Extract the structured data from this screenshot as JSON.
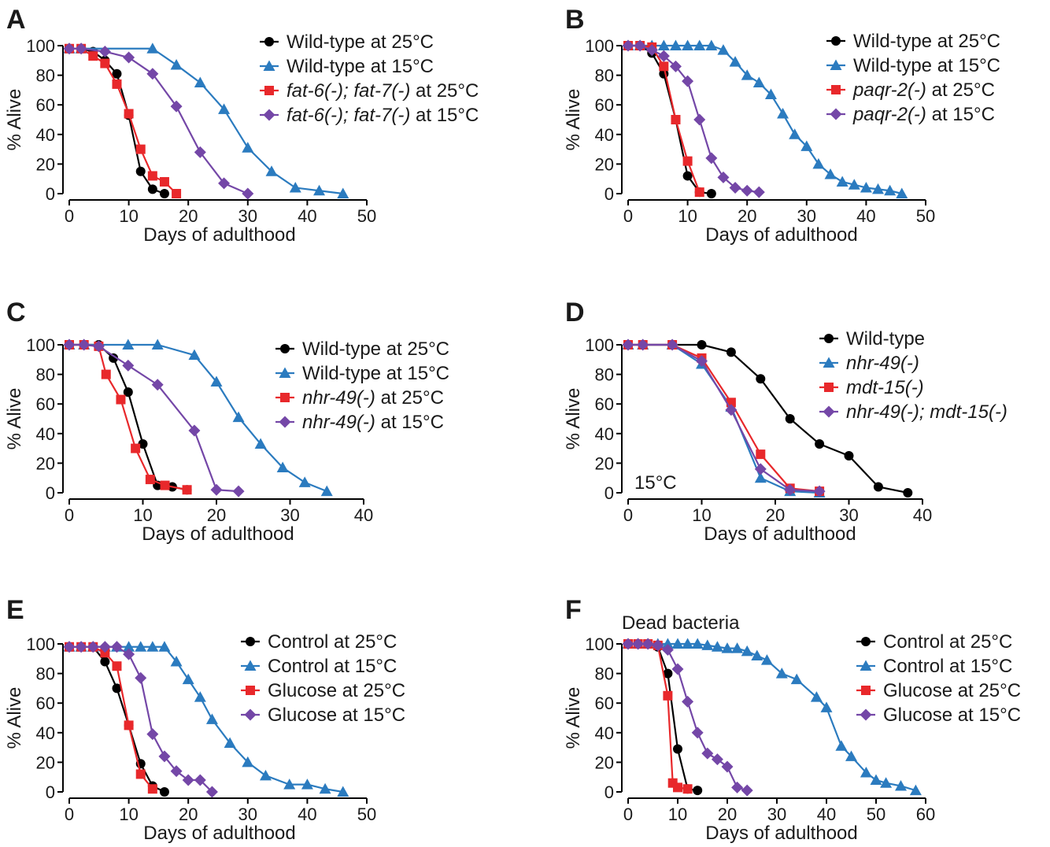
{
  "figure": {
    "panels": [
      {
        "letter": "A"
      },
      {
        "letter": "B"
      },
      {
        "letter": "C"
      },
      {
        "letter": "D"
      },
      {
        "letter": "E"
      },
      {
        "letter": "F"
      }
    ]
  },
  "chart_data": [
    {
      "type": "line",
      "panel": "A",
      "xlabel": "Days of adulthood",
      "ylabel": "% Alive",
      "xlim": [
        0,
        50
      ],
      "ylim": [
        0,
        100
      ],
      "xticks": [
        0,
        10,
        20,
        30,
        40,
        50
      ],
      "yticks": [
        0,
        20,
        40,
        60,
        80,
        100
      ],
      "legend_position": "top-right",
      "series": [
        {
          "name_parts": [
            {
              "text": "Wild-type at 25°C",
              "italic": false
            }
          ],
          "color": "#000000",
          "marker": "circle",
          "x": [
            0,
            2,
            4,
            6,
            8,
            10,
            12,
            14,
            16
          ],
          "y": [
            98,
            98,
            96,
            90,
            81,
            53,
            15,
            3,
            0
          ]
        },
        {
          "name_parts": [
            {
              "text": "Wild-type at 15°C",
              "italic": false
            }
          ],
          "color": "#2b7bbf",
          "marker": "triangle",
          "x": [
            0,
            2,
            14,
            18,
            22,
            26,
            30,
            34,
            38,
            42,
            46
          ],
          "y": [
            98,
            98,
            98,
            87,
            75,
            57,
            31,
            15,
            4,
            2,
            0
          ]
        },
        {
          "name_parts": [
            {
              "text": "fat-6(-); fat-7(-)",
              "italic": true
            },
            {
              "text": " at 25°C",
              "italic": false
            }
          ],
          "color": "#e8282b",
          "marker": "square",
          "x": [
            0,
            2,
            4,
            6,
            8,
            10,
            12,
            14,
            16,
            18
          ],
          "y": [
            98,
            98,
            93,
            88,
            74,
            54,
            30,
            12,
            8,
            0
          ]
        },
        {
          "name_parts": [
            {
              "text": "fat-6(-); fat-7(-)",
              "italic": true
            },
            {
              "text": " at 15°C",
              "italic": false
            }
          ],
          "color": "#7447a7",
          "marker": "diamond",
          "x": [
            0,
            2,
            6,
            10,
            14,
            18,
            22,
            26,
            30
          ],
          "y": [
            98,
            98,
            96,
            92,
            81,
            59,
            28,
            7,
            0
          ]
        }
      ]
    },
    {
      "type": "line",
      "panel": "B",
      "xlabel": "Days of adulthood",
      "ylabel": "% Alive",
      "xlim": [
        0,
        50
      ],
      "ylim": [
        0,
        100
      ],
      "xticks": [
        0,
        10,
        20,
        30,
        40,
        50
      ],
      "yticks": [
        0,
        20,
        40,
        60,
        80,
        100
      ],
      "legend_position": "top-right",
      "series": [
        {
          "name_parts": [
            {
              "text": "Wild-type at 25°C",
              "italic": false
            }
          ],
          "color": "#000000",
          "marker": "circle",
          "x": [
            0,
            2,
            4,
            6,
            8,
            10,
            12,
            14
          ],
          "y": [
            100,
            100,
            95,
            81,
            50,
            12,
            1,
            0
          ]
        },
        {
          "name_parts": [
            {
              "text": "Wild-type at 15°C",
              "italic": false
            }
          ],
          "color": "#2b7bbf",
          "marker": "triangle",
          "x": [
            0,
            2,
            4,
            6,
            8,
            10,
            12,
            14,
            16,
            18,
            20,
            22,
            24,
            26,
            28,
            30,
            32,
            34,
            36,
            38,
            40,
            42,
            44,
            46
          ],
          "y": [
            100,
            100,
            100,
            100,
            100,
            100,
            100,
            100,
            97,
            89,
            80,
            75,
            67,
            54,
            40,
            32,
            20,
            13,
            8,
            6,
            4,
            3,
            2,
            0
          ]
        },
        {
          "name_parts": [
            {
              "text": "paqr-2(-)",
              "italic": true
            },
            {
              "text": " at 25°C",
              "italic": false
            }
          ],
          "color": "#e8282b",
          "marker": "square",
          "x": [
            0,
            2,
            4,
            6,
            8,
            10,
            12
          ],
          "y": [
            100,
            100,
            99,
            86,
            50,
            22,
            1
          ]
        },
        {
          "name_parts": [
            {
              "text": "paqr-2(-)",
              "italic": true
            },
            {
              "text": " at 15°C",
              "italic": false
            }
          ],
          "color": "#7447a7",
          "marker": "diamond",
          "x": [
            0,
            2,
            4,
            6,
            8,
            10,
            12,
            14,
            16,
            18,
            20,
            22
          ],
          "y": [
            100,
            100,
            97,
            93,
            86,
            76,
            50,
            24,
            11,
            4,
            2,
            1
          ]
        }
      ]
    },
    {
      "type": "line",
      "panel": "C",
      "xlabel": "Days of adulthood",
      "ylabel": "% Alive",
      "xlim": [
        0,
        40
      ],
      "ylim": [
        0,
        100
      ],
      "xticks": [
        0,
        10,
        20,
        30,
        40
      ],
      "yticks": [
        0,
        20,
        40,
        60,
        80,
        100
      ],
      "legend_position": "top-right",
      "series": [
        {
          "name_parts": [
            {
              "text": "Wild-type at 25°C",
              "italic": false
            }
          ],
          "color": "#000000",
          "marker": "circle",
          "x": [
            0,
            2,
            4,
            6,
            8,
            10,
            12,
            14,
            16
          ],
          "y": [
            100,
            100,
            100,
            91,
            68,
            33,
            5,
            4,
            2
          ]
        },
        {
          "name_parts": [
            {
              "text": "Wild-type at 15°C",
              "italic": false
            }
          ],
          "color": "#2b7bbf",
          "marker": "triangle",
          "x": [
            0,
            2,
            8,
            12,
            17,
            20,
            23,
            26,
            29,
            32,
            35
          ],
          "y": [
            100,
            100,
            100,
            100,
            93,
            75,
            51,
            33,
            17,
            7,
            1
          ]
        },
        {
          "name_parts": [
            {
              "text": "nhr-49(-)",
              "italic": true
            },
            {
              "text": " at 25°C",
              "italic": false
            }
          ],
          "color": "#e8282b",
          "marker": "square",
          "x": [
            0,
            2,
            4,
            5,
            7,
            9,
            11,
            13,
            16
          ],
          "y": [
            100,
            100,
            99,
            80,
            63,
            30,
            9,
            5,
            2
          ]
        },
        {
          "name_parts": [
            {
              "text": "nhr-49(-)",
              "italic": true
            },
            {
              "text": " at 15°C",
              "italic": false
            }
          ],
          "color": "#7447a7",
          "marker": "diamond",
          "x": [
            0,
            2,
            4,
            8,
            12,
            17,
            20,
            23
          ],
          "y": [
            100,
            100,
            99,
            86,
            73,
            42,
            2,
            1
          ]
        }
      ]
    },
    {
      "type": "line",
      "panel": "D",
      "xlabel": "Days of adulthood",
      "ylabel": "% Alive",
      "xlim": [
        0,
        40
      ],
      "ylim": [
        0,
        100
      ],
      "xticks": [
        0,
        10,
        20,
        30,
        40
      ],
      "yticks": [
        0,
        20,
        40,
        60,
        80,
        100
      ],
      "legend_position": "top-right",
      "annotation": "15°C",
      "series": [
        {
          "name_parts": [
            {
              "text": "Wild-type",
              "italic": false
            }
          ],
          "color": "#000000",
          "marker": "circle",
          "x": [
            0,
            2,
            6,
            10,
            14,
            18,
            22,
            26,
            30,
            34,
            38
          ],
          "y": [
            100,
            100,
            100,
            100,
            95,
            77,
            50,
            33,
            25,
            4,
            0
          ]
        },
        {
          "name_parts": [
            {
              "text": "nhr-49(-)",
              "italic": true
            }
          ],
          "color": "#2b7bbf",
          "marker": "triangle",
          "x": [
            0,
            2,
            6,
            10,
            14,
            18,
            22,
            26
          ],
          "y": [
            100,
            100,
            100,
            87,
            58,
            10,
            1,
            0
          ]
        },
        {
          "name_parts": [
            {
              "text": "mdt-15(-)",
              "italic": true
            }
          ],
          "color": "#e8282b",
          "marker": "square",
          "x": [
            0,
            2,
            6,
            10,
            14,
            18,
            22,
            26
          ],
          "y": [
            100,
            100,
            100,
            91,
            61,
            26,
            3,
            1
          ]
        },
        {
          "name_parts": [
            {
              "text": "nhr-49(-); mdt-15(-)",
              "italic": true
            }
          ],
          "color": "#7447a7",
          "marker": "diamond",
          "x": [
            0,
            2,
            6,
            10,
            14,
            18,
            22,
            26
          ],
          "y": [
            100,
            100,
            100,
            89,
            56,
            16,
            2,
            1
          ]
        }
      ]
    },
    {
      "type": "line",
      "panel": "E",
      "xlabel": "Days of adulthood",
      "ylabel": "% Alive",
      "xlim": [
        0,
        50
      ],
      "ylim": [
        0,
        100
      ],
      "xticks": [
        0,
        10,
        20,
        30,
        40,
        50
      ],
      "yticks": [
        0,
        20,
        40,
        60,
        80,
        100
      ],
      "legend_position": "top-right",
      "series": [
        {
          "name_parts": [
            {
              "text": "Control at 25°C",
              "italic": false
            }
          ],
          "color": "#000000",
          "marker": "circle",
          "x": [
            0,
            2,
            4,
            6,
            8,
            10,
            12,
            14,
            16
          ],
          "y": [
            98,
            98,
            98,
            88,
            70,
            45,
            19,
            4,
            0
          ]
        },
        {
          "name_parts": [
            {
              "text": "Control at 15°C",
              "italic": false
            }
          ],
          "color": "#2b7bbf",
          "marker": "triangle",
          "x": [
            0,
            2,
            4,
            6,
            8,
            10,
            12,
            14,
            16,
            18,
            20,
            22,
            24,
            27,
            30,
            33,
            37,
            40,
            43,
            46
          ],
          "y": [
            98,
            98,
            98,
            98,
            98,
            98,
            98,
            98,
            98,
            88,
            76,
            64,
            49,
            33,
            20,
            11,
            5,
            5,
            2,
            0
          ]
        },
        {
          "name_parts": [
            {
              "text": "Glucose at 25°C",
              "italic": false
            }
          ],
          "color": "#e8282b",
          "marker": "square",
          "x": [
            0,
            2,
            4,
            6,
            8,
            10,
            12,
            14
          ],
          "y": [
            98,
            98,
            98,
            94,
            85,
            45,
            12,
            2
          ]
        },
        {
          "name_parts": [
            {
              "text": "Glucose at 15°C",
              "italic": false
            }
          ],
          "color": "#7447a7",
          "marker": "diamond",
          "x": [
            0,
            2,
            4,
            6,
            8,
            10,
            12,
            14,
            16,
            18,
            20,
            22,
            24
          ],
          "y": [
            98,
            98,
            98,
            98,
            98,
            93,
            77,
            39,
            24,
            14,
            8,
            8,
            0
          ]
        }
      ]
    },
    {
      "type": "line",
      "panel": "F",
      "xlabel": "Days of adulthood",
      "ylabel": "% Alive",
      "xlim": [
        0,
        60
      ],
      "ylim": [
        0,
        100
      ],
      "xticks": [
        0,
        10,
        20,
        30,
        40,
        50,
        60
      ],
      "yticks": [
        0,
        20,
        40,
        60,
        80,
        100
      ],
      "legend_position": "top-right",
      "annotation": "Dead bacteria",
      "series": [
        {
          "name_parts": [
            {
              "text": "Control at 25°C",
              "italic": false
            }
          ],
          "color": "#000000",
          "marker": "circle",
          "x": [
            0,
            2,
            4,
            6,
            8,
            10,
            12,
            14
          ],
          "y": [
            100,
            100,
            100,
            98,
            80,
            29,
            2,
            1
          ]
        },
        {
          "name_parts": [
            {
              "text": "Control at 15°C",
              "italic": false
            }
          ],
          "color": "#2b7bbf",
          "marker": "triangle",
          "x": [
            0,
            2,
            4,
            6,
            8,
            10,
            12,
            14,
            16,
            18,
            20,
            22,
            24,
            26,
            28,
            31,
            34,
            38,
            40,
            43,
            45,
            48,
            50,
            52,
            55,
            58
          ],
          "y": [
            100,
            100,
            100,
            100,
            100,
            100,
            100,
            100,
            99,
            98,
            97,
            97,
            95,
            92,
            89,
            80,
            76,
            64,
            57,
            31,
            24,
            13,
            8,
            6,
            4,
            1
          ]
        },
        {
          "name_parts": [
            {
              "text": "Glucose at 25°C",
              "italic": false
            }
          ],
          "color": "#e8282b",
          "marker": "square",
          "x": [
            0,
            2,
            4,
            6,
            8,
            9,
            10,
            12
          ],
          "y": [
            100,
            100,
            100,
            99,
            65,
            6,
            3,
            2
          ]
        },
        {
          "name_parts": [
            {
              "text": "Glucose at 15°C",
              "italic": false
            }
          ],
          "color": "#7447a7",
          "marker": "diamond",
          "x": [
            0,
            2,
            4,
            6,
            8,
            10,
            12,
            14,
            16,
            18,
            20,
            22,
            24
          ],
          "y": [
            100,
            100,
            100,
            99,
            96,
            83,
            61,
            40,
            26,
            22,
            17,
            3,
            1
          ]
        }
      ]
    }
  ]
}
